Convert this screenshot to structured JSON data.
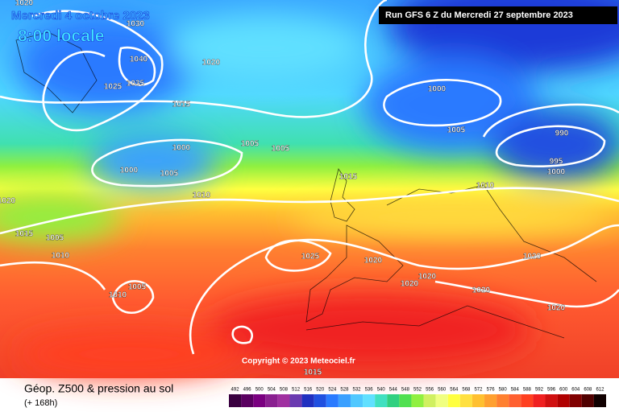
{
  "header": {
    "valid_date": "Mercredi 4 octobre 2023",
    "local_time": "8:00 locale",
    "run": "Run GFS 6 Z du Mercredi 27 septembre 2023"
  },
  "copyright": "Copyright © 2023 Meteociel.fr",
  "footer": {
    "title": "Géop. Z500 & pression au sol",
    "lead": "(+ 168h)"
  },
  "isobar_labels": [
    "1020",
    "1030",
    "1040",
    "1025",
    "1035",
    "1020",
    "1015",
    "1000",
    "1005",
    "990",
    "995",
    "1000",
    "1000",
    "1000",
    "1005",
    "1005",
    "1005",
    "1010",
    "1015",
    "1010",
    "1020",
    "1015",
    "1005",
    "1010",
    "1025",
    "1020",
    "1020",
    "1020",
    "1020",
    "1020",
    "1020",
    "1005",
    "1010",
    "1015"
  ],
  "legend": {
    "values": [
      492,
      496,
      500,
      504,
      508,
      512,
      516,
      520,
      524,
      528,
      532,
      536,
      540,
      544,
      548,
      552,
      556,
      560,
      564,
      568,
      572,
      576,
      580,
      584,
      588,
      592,
      596,
      600,
      604,
      608,
      612
    ],
    "colors": [
      "#3a0040",
      "#5a0060",
      "#7a0080",
      "#8a2090",
      "#a030a0",
      "#6a3ab0",
      "#2030c0",
      "#2050e0",
      "#2a7aff",
      "#3aa0ff",
      "#50c8ff",
      "#60e0ff",
      "#40e0c0",
      "#30d080",
      "#50e050",
      "#90f040",
      "#d0f060",
      "#f0ff80",
      "#ffff40",
      "#ffe040",
      "#ffc030",
      "#ffa030",
      "#ff8030",
      "#ff6030",
      "#ff4020",
      "#f02020",
      "#d01010",
      "#b00000",
      "#800000",
      "#500000",
      "#100000"
    ]
  }
}
